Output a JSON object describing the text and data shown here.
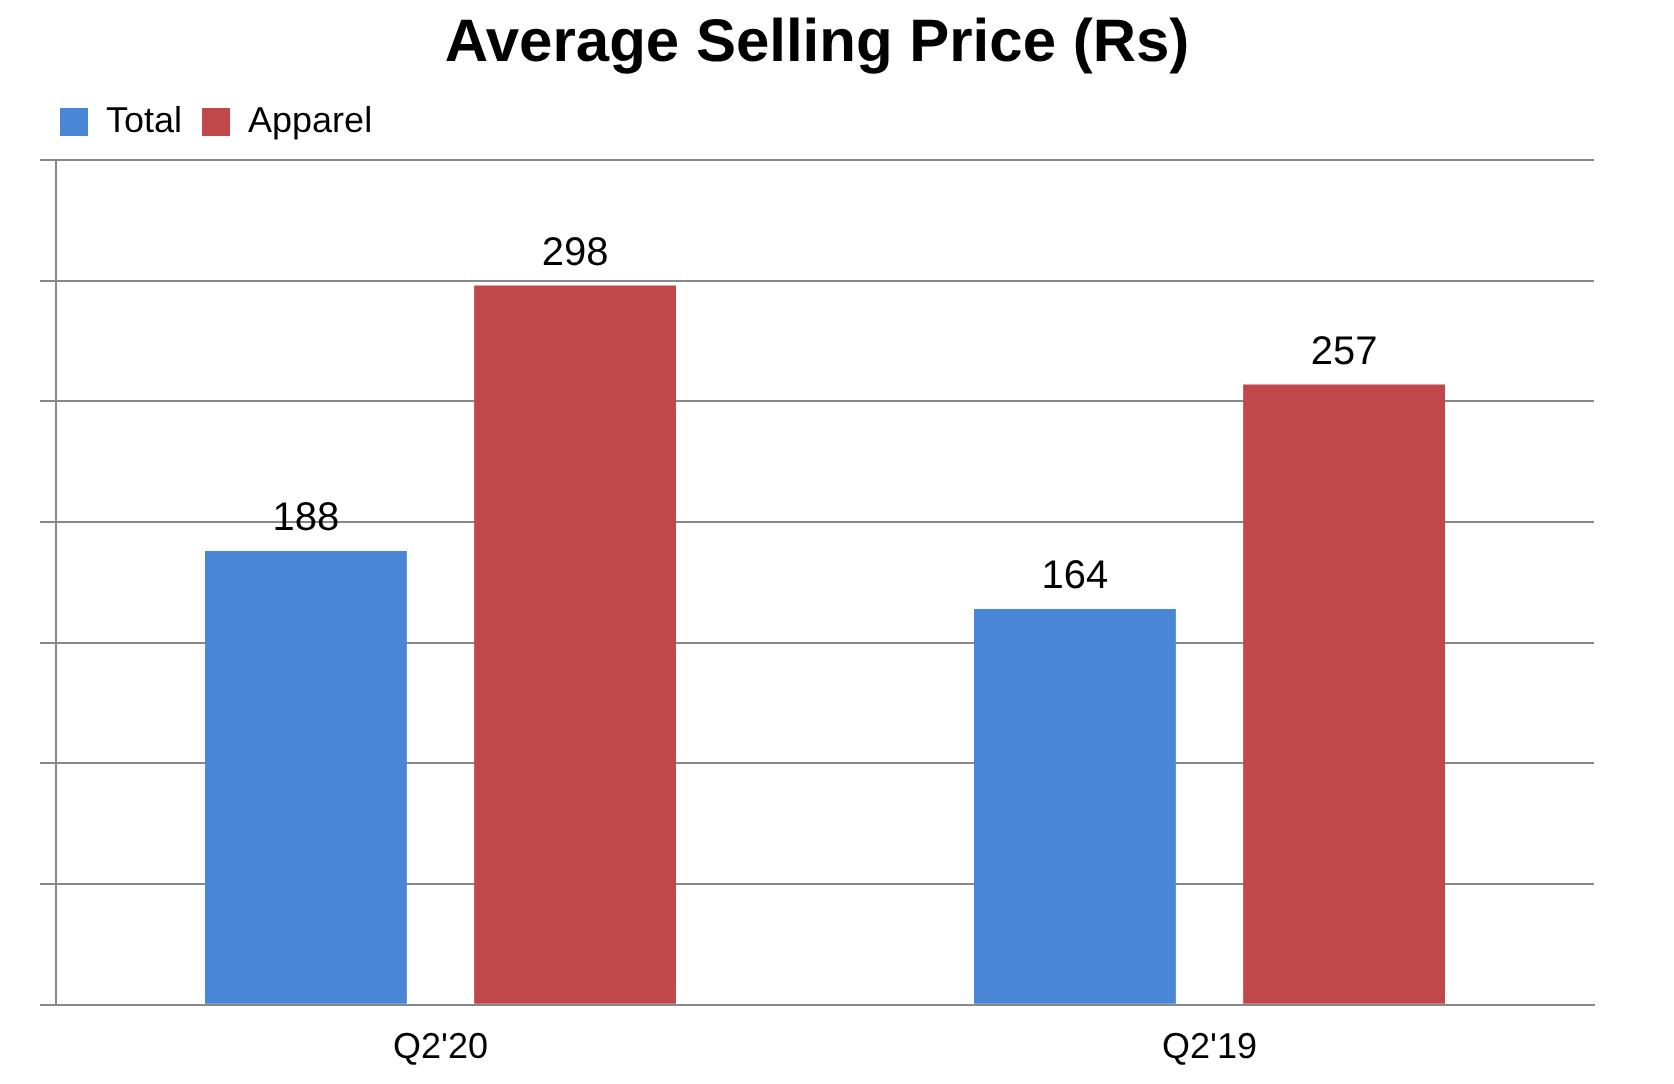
{
  "chart_data": {
    "type": "bar",
    "title": "Average Selling Price (Rs)",
    "categories": [
      "Q2'20",
      "Q2'19"
    ],
    "series": [
      {
        "name": "Total",
        "color": "#4a86d6",
        "values": [
          188,
          164
        ]
      },
      {
        "name": "Apparel",
        "color": "#c0474a",
        "values": [
          298,
          257
        ]
      }
    ],
    "data_labels": true,
    "grid": "y",
    "legend": "top left",
    "tick_labels": "x"
  }
}
